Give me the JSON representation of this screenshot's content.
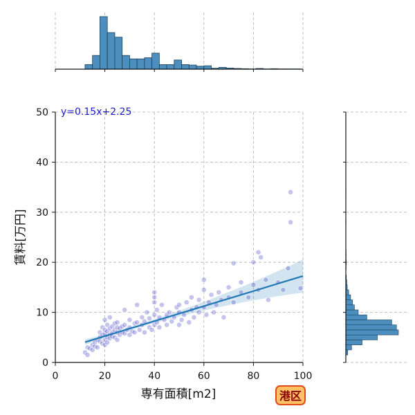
{
  "chart_data": {
    "type": "scatter",
    "xlabel": "専有面積[m2]",
    "ylabel": "賃料[万円]",
    "xlim": [
      0,
      100
    ],
    "ylim": [
      0,
      50
    ],
    "x_ticks": [
      "0",
      "20",
      "40",
      "60",
      "80",
      "100"
    ],
    "y_ticks": [
      "0",
      "10",
      "20",
      "30",
      "40",
      "50"
    ],
    "grid": true,
    "regression": {
      "slope": 0.15,
      "intercept": 2.25,
      "x_range": [
        12,
        100
      ],
      "label": "y=0.15x+2.25"
    },
    "badge": "港区",
    "colors": {
      "points": "#3b3bc4",
      "regression": "#1f77b4",
      "histogram": "#4c8fbf",
      "badge_fill": "#ffc066",
      "badge_edge": "#e04a1a"
    },
    "points": [
      {
        "x": 12,
        "y": 2.0
      },
      {
        "x": 13,
        "y": 1.5
      },
      {
        "x": 13,
        "y": 3.0
      },
      {
        "x": 14,
        "y": 2.8
      },
      {
        "x": 15,
        "y": 3.5
      },
      {
        "x": 15,
        "y": 2.5
      },
      {
        "x": 16,
        "y": 4.0
      },
      {
        "x": 16,
        "y": 3.2
      },
      {
        "x": 17,
        "y": 4.5
      },
      {
        "x": 17,
        "y": 3.0
      },
      {
        "x": 18,
        "y": 5.0
      },
      {
        "x": 18,
        "y": 4.2
      },
      {
        "x": 18,
        "y": 6.0
      },
      {
        "x": 19,
        "y": 5.5
      },
      {
        "x": 19,
        "y": 3.8
      },
      {
        "x": 19,
        "y": 7.0
      },
      {
        "x": 20,
        "y": 4.5
      },
      {
        "x": 20,
        "y": 5.8
      },
      {
        "x": 20,
        "y": 6.5
      },
      {
        "x": 20,
        "y": 3.5
      },
      {
        "x": 20,
        "y": 8.5
      },
      {
        "x": 21,
        "y": 5.0
      },
      {
        "x": 21,
        "y": 6.2
      },
      {
        "x": 21,
        "y": 7.5
      },
      {
        "x": 21,
        "y": 4.0
      },
      {
        "x": 22,
        "y": 5.5
      },
      {
        "x": 22,
        "y": 6.8
      },
      {
        "x": 22,
        "y": 4.8
      },
      {
        "x": 22,
        "y": 9.0
      },
      {
        "x": 23,
        "y": 6.0
      },
      {
        "x": 23,
        "y": 7.2
      },
      {
        "x": 23,
        "y": 5.2
      },
      {
        "x": 24,
        "y": 6.5
      },
      {
        "x": 24,
        "y": 5.0
      },
      {
        "x": 24,
        "y": 7.8
      },
      {
        "x": 25,
        "y": 6.0
      },
      {
        "x": 25,
        "y": 7.0
      },
      {
        "x": 25,
        "y": 4.5
      },
      {
        "x": 25,
        "y": 8.0
      },
      {
        "x": 26,
        "y": 6.8
      },
      {
        "x": 26,
        "y": 5.5
      },
      {
        "x": 27,
        "y": 7.2
      },
      {
        "x": 27,
        "y": 6.0
      },
      {
        "x": 28,
        "y": 7.5
      },
      {
        "x": 28,
        "y": 5.8
      },
      {
        "x": 28,
        "y": 10.5
      },
      {
        "x": 29,
        "y": 6.5
      },
      {
        "x": 30,
        "y": 7.0
      },
      {
        "x": 30,
        "y": 5.5
      },
      {
        "x": 30,
        "y": 8.5
      },
      {
        "x": 31,
        "y": 6.2
      },
      {
        "x": 32,
        "y": 7.8
      },
      {
        "x": 32,
        "y": 6.0
      },
      {
        "x": 33,
        "y": 8.0
      },
      {
        "x": 33,
        "y": 11.5
      },
      {
        "x": 34,
        "y": 6.5
      },
      {
        "x": 35,
        "y": 7.5
      },
      {
        "x": 35,
        "y": 9.0
      },
      {
        "x": 36,
        "y": 6.0
      },
      {
        "x": 36,
        "y": 8.2
      },
      {
        "x": 37,
        "y": 10.0
      },
      {
        "x": 38,
        "y": 7.0
      },
      {
        "x": 38,
        "y": 8.8
      },
      {
        "x": 39,
        "y": 6.5
      },
      {
        "x": 40,
        "y": 7.5
      },
      {
        "x": 40,
        "y": 9.5
      },
      {
        "x": 40,
        "y": 12.0
      },
      {
        "x": 40,
        "y": 14.0
      },
      {
        "x": 40,
        "y": 13.0
      },
      {
        "x": 41,
        "y": 8.0
      },
      {
        "x": 41,
        "y": 10.5
      },
      {
        "x": 42,
        "y": 9.0
      },
      {
        "x": 42,
        "y": 7.0
      },
      {
        "x": 43,
        "y": 11.5
      },
      {
        "x": 44,
        "y": 8.5
      },
      {
        "x": 45,
        "y": 9.5
      },
      {
        "x": 45,
        "y": 7.5
      },
      {
        "x": 46,
        "y": 10.0
      },
      {
        "x": 47,
        "y": 8.2
      },
      {
        "x": 48,
        "y": 9.0
      },
      {
        "x": 49,
        "y": 11.0
      },
      {
        "x": 50,
        "y": 10.0
      },
      {
        "x": 50,
        "y": 7.5
      },
      {
        "x": 50,
        "y": 11.5
      },
      {
        "x": 51,
        "y": 8.5
      },
      {
        "x": 52,
        "y": 9.5
      },
      {
        "x": 53,
        "y": 12.0
      },
      {
        "x": 54,
        "y": 8.0
      },
      {
        "x": 55,
        "y": 10.5
      },
      {
        "x": 55,
        "y": 13.0
      },
      {
        "x": 56,
        "y": 9.0
      },
      {
        "x": 57,
        "y": 11.0
      },
      {
        "x": 58,
        "y": 10.0
      },
      {
        "x": 58,
        "y": 12.5
      },
      {
        "x": 60,
        "y": 11.0
      },
      {
        "x": 60,
        "y": 14.5
      },
      {
        "x": 60,
        "y": 16.5
      },
      {
        "x": 61,
        "y": 9.5
      },
      {
        "x": 62,
        "y": 12.0
      },
      {
        "x": 63,
        "y": 13.5
      },
      {
        "x": 64,
        "y": 10.0
      },
      {
        "x": 65,
        "y": 11.5
      },
      {
        "x": 66,
        "y": 14.0
      },
      {
        "x": 67,
        "y": 12.5
      },
      {
        "x": 68,
        "y": 9.0
      },
      {
        "x": 70,
        "y": 13.0
      },
      {
        "x": 70,
        "y": 15.0
      },
      {
        "x": 72,
        "y": 19.8
      },
      {
        "x": 72,
        "y": 12.0
      },
      {
        "x": 75,
        "y": 16.0
      },
      {
        "x": 75,
        "y": 14.0
      },
      {
        "x": 78,
        "y": 13.0
      },
      {
        "x": 80,
        "y": 15.5
      },
      {
        "x": 80,
        "y": 20.0
      },
      {
        "x": 82,
        "y": 14.5
      },
      {
        "x": 82,
        "y": 22.0
      },
      {
        "x": 83,
        "y": 21.0
      },
      {
        "x": 85,
        "y": 16.5
      },
      {
        "x": 86,
        "y": 12.5
      },
      {
        "x": 90,
        "y": 16.0
      },
      {
        "x": 92,
        "y": 14.5
      },
      {
        "x": 94,
        "y": 18.8
      },
      {
        "x": 95,
        "y": 28.0
      },
      {
        "x": 95,
        "y": 34.0
      },
      {
        "x": 99,
        "y": 14.8
      }
    ],
    "x_histogram": [
      {
        "x0": 12,
        "x1": 15,
        "count": 2
      },
      {
        "x0": 15,
        "x1": 18,
        "count": 6
      },
      {
        "x0": 18,
        "x1": 21,
        "count": 23
      },
      {
        "x0": 21,
        "x1": 24,
        "count": 16
      },
      {
        "x0": 24,
        "x1": 27,
        "count": 14
      },
      {
        "x0": 27,
        "x1": 30,
        "count": 6
      },
      {
        "x0": 30,
        "x1": 33,
        "count": 4.5
      },
      {
        "x0": 33,
        "x1": 36,
        "count": 4.5
      },
      {
        "x0": 36,
        "x1": 39,
        "count": 5
      },
      {
        "x0": 39,
        "x1": 42,
        "count": 7
      },
      {
        "x0": 42,
        "x1": 45,
        "count": 2
      },
      {
        "x0": 45,
        "x1": 48,
        "count": 2
      },
      {
        "x0": 48,
        "x1": 51,
        "count": 4
      },
      {
        "x0": 51,
        "x1": 54,
        "count": 2
      },
      {
        "x0": 54,
        "x1": 57,
        "count": 1.8
      },
      {
        "x0": 57,
        "x1": 60,
        "count": 1.3
      },
      {
        "x0": 60,
        "x1": 63,
        "count": 1.5
      },
      {
        "x0": 63,
        "x1": 66,
        "count": 0.4
      },
      {
        "x0": 66,
        "x1": 69,
        "count": 0.8
      },
      {
        "x0": 69,
        "x1": 72,
        "count": 0.5
      },
      {
        "x0": 72,
        "x1": 75,
        "count": 0.3
      },
      {
        "x0": 75,
        "x1": 78,
        "count": 0.2
      },
      {
        "x0": 78,
        "x1": 81,
        "count": 0.1
      },
      {
        "x0": 81,
        "x1": 84,
        "count": 0.3
      },
      {
        "x0": 84,
        "x1": 87,
        "count": 0.1
      },
      {
        "x0": 87,
        "x1": 90,
        "count": 0.2
      },
      {
        "x0": 90,
        "x1": 93,
        "count": 0.1
      },
      {
        "x0": 93,
        "x1": 96,
        "count": 0.1
      },
      {
        "x0": 96,
        "x1": 99,
        "count": 0.1
      }
    ],
    "y_histogram": [
      {
        "y0": 1.5,
        "y1": 2.5,
        "count": 2
      },
      {
        "y0": 2.5,
        "y1": 3.5,
        "count": 6
      },
      {
        "y0": 3.5,
        "y1": 4.5,
        "count": 17
      },
      {
        "y0": 4.5,
        "y1": 5.5,
        "count": 33
      },
      {
        "y0": 5.5,
        "y1": 6.5,
        "count": 55
      },
      {
        "y0": 6.5,
        "y1": 7.5,
        "count": 53
      },
      {
        "y0": 7.5,
        "y1": 8.5,
        "count": 48
      },
      {
        "y0": 8.5,
        "y1": 9.5,
        "count": 22
      },
      {
        "y0": 9.5,
        "y1": 10.5,
        "count": 13
      },
      {
        "y0": 10.5,
        "y1": 11.5,
        "count": 9
      },
      {
        "y0": 11.5,
        "y1": 12.5,
        "count": 7
      },
      {
        "y0": 12.5,
        "y1": 13.5,
        "count": 5
      },
      {
        "y0": 13.5,
        "y1": 14.5,
        "count": 3
      },
      {
        "y0": 14.5,
        "y1": 15.5,
        "count": 1.5
      },
      {
        "y0": 15.5,
        "y1": 16.5,
        "count": 1
      },
      {
        "y0": 16.5,
        "y1": 17.5,
        "count": 0.5
      },
      {
        "y0": 18.5,
        "y1": 19.5,
        "count": 0.3
      },
      {
        "y0": 19.5,
        "y1": 20.5,
        "count": 0.5
      },
      {
        "y0": 20.5,
        "y1": 21.5,
        "count": 0.3
      },
      {
        "y0": 21.5,
        "y1": 22.5,
        "count": 0.3
      },
      {
        "y0": 27.5,
        "y1": 28.5,
        "count": 0.2
      },
      {
        "y0": 33.5,
        "y1": 34.5,
        "count": 0.2
      }
    ]
  }
}
